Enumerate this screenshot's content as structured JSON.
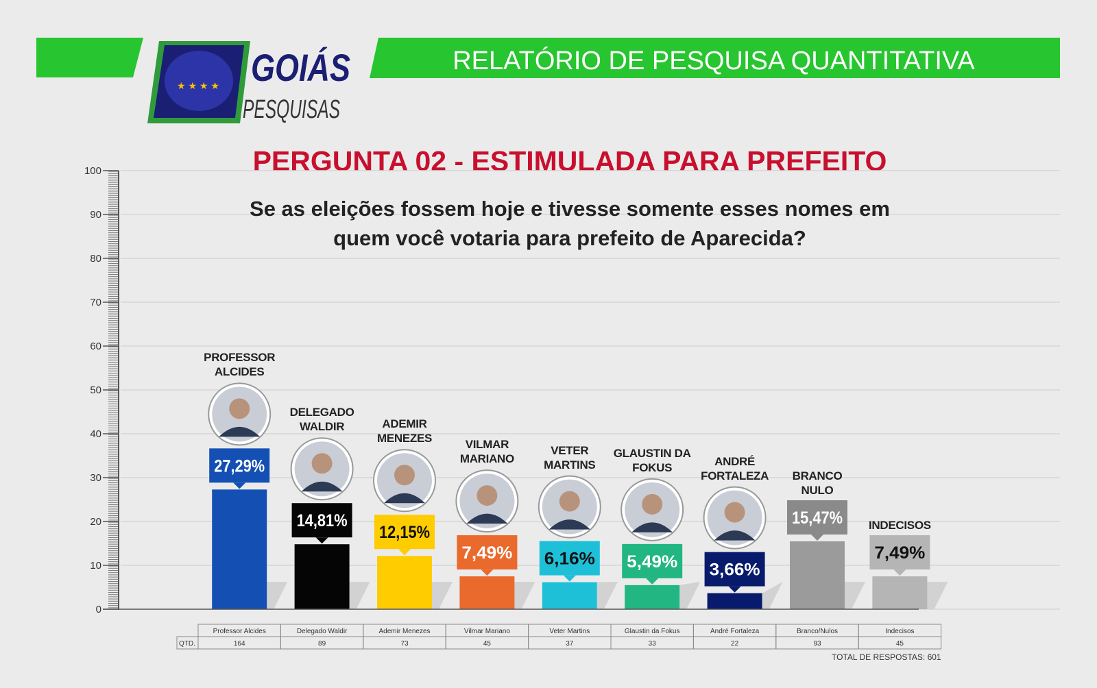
{
  "header": {
    "title": "RELATÓRIO DE PESQUISA QUANTITATIVA",
    "logo_top": "GOIÁS",
    "logo_bottom": "PESQUISAS"
  },
  "chart_data": {
    "type": "bar",
    "title": "PERGUNTA 02 -  ESTIMULADA PARA PREFEITO",
    "subtitle": [
      "Se as eleições fossem hoje e tivesse somente esses nomes em",
      "quem você votaria para prefeito de Aparecida?"
    ],
    "categories": [
      "PROFESSOR ALCIDES",
      "DELEGADO WALDIR",
      "ADEMIR MENEZES",
      "VILMAR MARIANO",
      "VETER MARTINS",
      "GLAUSTIN DA FOKUS",
      "ANDRÉ FORTALEZA",
      "BRANCO NULO",
      "INDECISOS"
    ],
    "values": [
      27.29,
      14.81,
      12.15,
      7.49,
      6.16,
      5.49,
      3.66,
      15.47,
      7.49
    ],
    "value_labels": [
      "27,29%",
      "14,81%",
      "12,15%",
      "7,49%",
      "6,16%",
      "5,49%",
      "3,66%",
      "15,47%",
      "7,49%"
    ],
    "colors": [
      "#1450b4",
      "#050505",
      "#ffcc00",
      "#ea6a2e",
      "#1ec0d8",
      "#22b683",
      "#071a6b",
      "#9b9b9b",
      "#b5b5b5"
    ],
    "label_colors": [
      "#1450b4",
      "#050505",
      "#ffcc00",
      "#ea6a2e",
      "#1ec0d8",
      "#22b683",
      "#071a6b",
      "#8a8a8a",
      "#b5b5b5"
    ],
    "ylim": [
      0,
      100
    ],
    "yticks": [
      0,
      10,
      20,
      30,
      40,
      50,
      60,
      70,
      80,
      90,
      100
    ],
    "grid": true,
    "table": {
      "row_label": "QTD.",
      "names": [
        "Professor Alcides",
        "Delegado Waldir",
        "Ademir Menezes",
        "Vilmar Mariano",
        "Veter Martins",
        "Glaustin da Fokus",
        "André Fortaleza",
        "Branco/Nulos",
        "Indecisos"
      ],
      "counts": [
        164,
        89,
        73,
        45,
        37,
        33,
        22,
        93,
        45
      ]
    },
    "total": "TOTAL DE RESPOSTAS: 601"
  }
}
